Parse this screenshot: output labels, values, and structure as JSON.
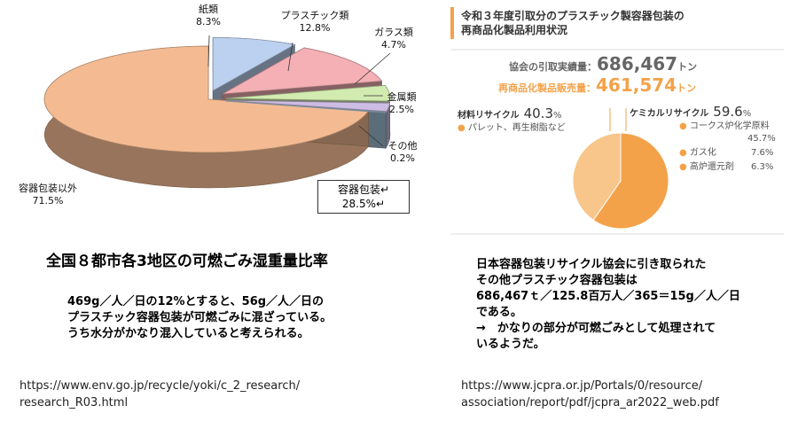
{
  "left_chart": {
    "chart_data": {
      "type": "pie",
      "categories": [
        "容器包装以外",
        "紙類",
        "プラスチック類",
        "ガラス類",
        "金属類",
        "その他"
      ],
      "values": [
        71.5,
        8.3,
        12.8,
        4.7,
        2.5,
        0.2
      ],
      "labels": [
        "容器包装以外\n71.5%",
        "紙類\n8.3%",
        "プラスチック類\n12.8%",
        "ガラス類\n4.7%",
        "金属類\n2.5%",
        "その他\n0.2%"
      ],
      "colors": [
        "#f4bb93",
        "#bcd0ef",
        "#f4b0b4",
        "#d2ebb0",
        "#cdbce3",
        "#a7c7de"
      ],
      "annotation": "容器包装↵\n28.5%↵"
    },
    "caption": "全国８都市各3地区の可燃ごみ湿重量比率"
  },
  "right_chart": {
    "title_line1": "令和３年度引取分のプラスチック製容器包装の",
    "title_line2": "再商品化製品利用状況",
    "stats": {
      "collected_label": "協会の引取実績量：",
      "collected_value": "686,467",
      "collected_unit": "トン",
      "sold_label": "再商品化製品販売量：",
      "sold_value": "461,574",
      "sold_unit": "トン"
    },
    "chart_data": {
      "type": "pie",
      "categories": [
        "材料リサイクル",
        "ケミカルリサイクル"
      ],
      "values": [
        40.3,
        59.6
      ],
      "colors": [
        "#f8c68b",
        "#f3a24a"
      ]
    },
    "material": {
      "name": "材料リサイクル",
      "pct": "40.3",
      "pct_sign": "%",
      "note": "パレット、再生樹脂など"
    },
    "chemical": {
      "name": "ケミカルリサイクル",
      "pct": "59.6",
      "pct_sign": "%",
      "items": [
        {
          "name": "コークス炉化学原料",
          "value": "45.7%"
        },
        {
          "name": "ガス化",
          "value": "7.6%"
        },
        {
          "name": "高炉還元剤",
          "value": "6.3%"
        }
      ]
    }
  },
  "left_text": {
    "line1": "469g／人／日の12%とすると、56g／人／日の",
    "line2": "プラスチック容器包装が可燃ごみに混ざっている。",
    "line3": "うち水分がかなり混入していると考えられる。"
  },
  "right_text": {
    "line1": "日本容器包装リサイクル協会に引き取られた",
    "line2": "その他プラスチック容器包装は",
    "line3": "686,467ｔ／125.8百万人／365＝15g／人／日",
    "line4": "である。",
    "line5": "→　かなりの部分が可燃ごみとして処理されて",
    "line6": "いるようだ。"
  },
  "urls": {
    "left_line1": "https://www.env.go.jp/recycle/yoki/c_2_research/",
    "left_line2": "research_R03.html",
    "right_line1": "https://www.jcpra.or.jp/Portals/0/resource/",
    "right_line2": "association/report/pdf/jcpra_ar2022_web.pdf"
  }
}
